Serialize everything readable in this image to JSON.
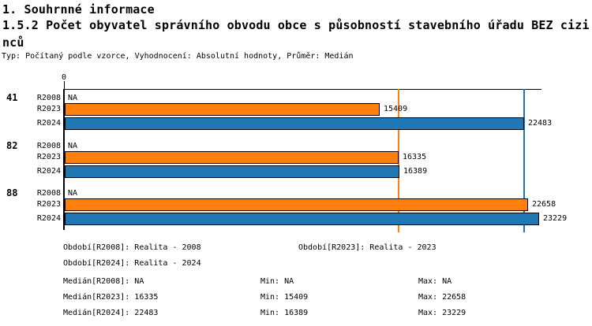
{
  "header": {
    "title": "1. Souhrnné informace",
    "subtitle_lines": [
      "1.5.2 Počet obyvatel správního obvodu obce s působností stavebního úřadu BEZ cizi",
      "nců"
    ],
    "meta": "Typ: Počítaný podle vzorce, Vyhodnocení: Absolutní hodnoty, Průměr: Medián"
  },
  "chart_data": {
    "type": "bar",
    "orientation": "horizontal",
    "title": "1.5.2 Počet obyvatel správního obvodu obce s působností stavebního úřadu BEZ cizinců",
    "categories": [
      "41",
      "82",
      "88"
    ],
    "series": [
      {
        "name": "R2008",
        "values": [
          null,
          null,
          null
        ],
        "na_label": "NA",
        "color": null
      },
      {
        "name": "R2023",
        "values": [
          15409,
          16335,
          22658
        ],
        "color": "#ff7f0e"
      },
      {
        "name": "R2024",
        "values": [
          22483,
          16389,
          23229
        ],
        "color": "#1f77b4"
      }
    ],
    "x_axis": {
      "origin_tick_label": "0",
      "min": 0,
      "max": 23410,
      "grid": false
    },
    "value_labels_shown": true,
    "reference_lines": [
      {
        "value": 16335,
        "color": "#ff7f0e"
      },
      {
        "value": 22483,
        "color": "#1f77b4"
      }
    ],
    "legend_position": "bottom"
  },
  "legend": {
    "r2008": "Období[R2008]: Realita - 2008",
    "r2023": "Období[R2023]: Realita - 2023",
    "r2024": "Období[R2024]: Realita - 2024"
  },
  "stats": {
    "rows": [
      {
        "median": "Medián[R2008]: NA",
        "min": "Min: NA",
        "max": "Max: NA"
      },
      {
        "median": "Medián[R2023]: 16335",
        "min": "Min: 15409",
        "max": "Max: 22658"
      },
      {
        "median": "Medián[R2024]: 22483",
        "min": "Min: 16389",
        "max": "Max: 23229"
      }
    ]
  },
  "colors": {
    "bar_r2023": "#ff7f0e",
    "bar_r2024": "#1f77b4",
    "axis": "#000000",
    "background": "#ffffff"
  }
}
